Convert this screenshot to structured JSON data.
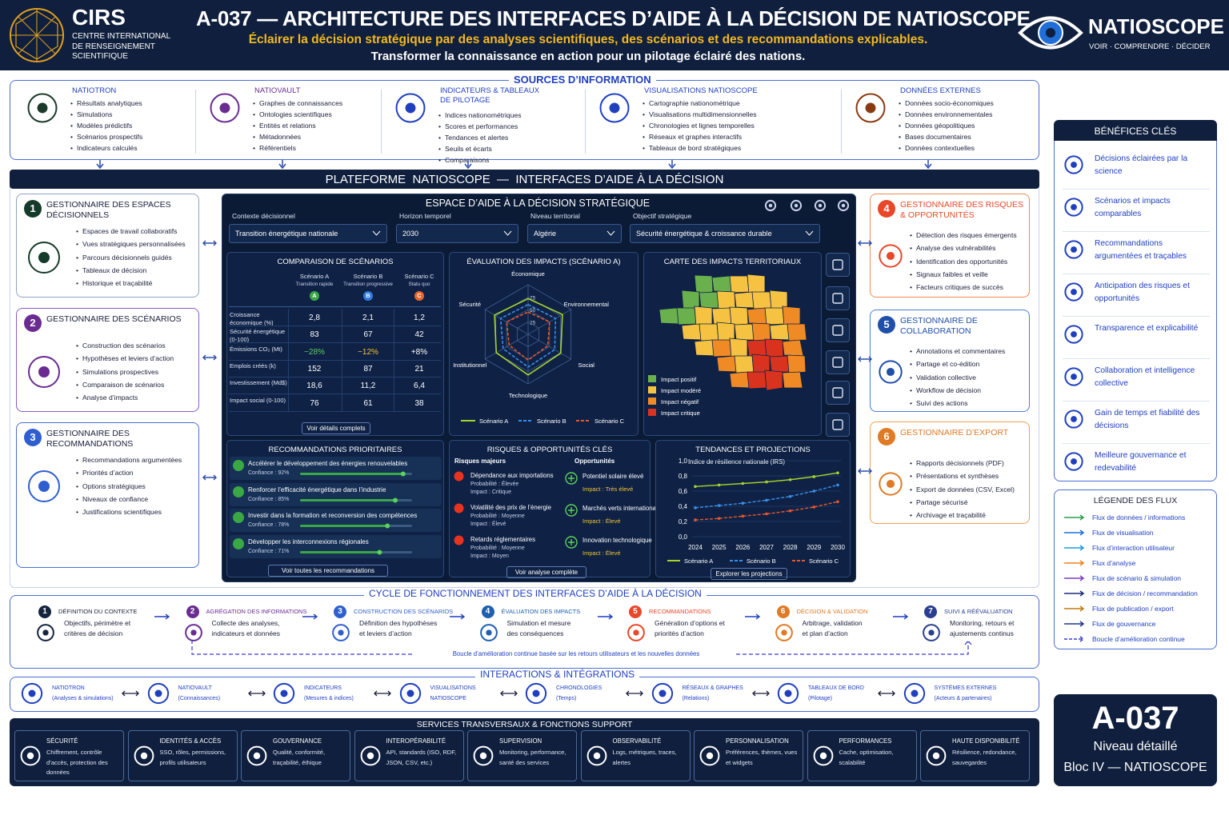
{
  "header": {
    "org_acronym": "CIRS",
    "org_name": [
      "CENTRE INTERNATIONAL",
      "DE RENSEIGNEMENT",
      "SCIENTIFIQUE"
    ],
    "title": "A-037 — ARCHITECTURE DES INTERFACES D’AIDE À LA DÉCISION DE NATIOSCOPE",
    "subtitle": "Éclairer la décision stratégique par des analyses scientifiques, des scénarios et des recommandations explicables.",
    "tagline": "Transformer la connaissance en action pour un pilotage éclairé des nations.",
    "brand": "NATIOSCOPE",
    "brand_tagline": "VOIR · COMPRENDRE · DÉCIDER"
  },
  "sources": {
    "title": "SOURCES D’INFORMATION",
    "items": [
      {
        "title": "NATIOTRON",
        "bullets": [
          "Résultats analytiques",
          "Simulations",
          "Modèles prédictifs",
          "Scénarios prospectifs",
          "Indicateurs calculés"
        ]
      },
      {
        "title": "NATIOVAULT",
        "bullets": [
          "Graphes de connaissances",
          "Ontologies scientifiques",
          "Entités et relations",
          "Métadonnées",
          "Référentiels"
        ]
      },
      {
        "title": "INDICATEURS & TABLEAUX DE PILOTAGE",
        "bullets": [
          "Indices nationométriques",
          "Scores et performances",
          "Tendances et alertes",
          "Seuils et écarts",
          "Comparaisons"
        ]
      },
      {
        "title": "VISUALISATIONS NATIOSCOPE",
        "bullets": [
          "Cartographie nationométrique",
          "Visualisations multidimensionnelles",
          "Chronologies et lignes temporelles",
          "Réseaux et graphes interactifs",
          "Tableaux de bord stratégiques"
        ]
      },
      {
        "title": "DONNÉES EXTERNES",
        "bullets": [
          "Données socio-économiques",
          "Données environnementales",
          "Données géopolitiques",
          "Bases documentaires",
          "Données contextuelles"
        ]
      }
    ]
  },
  "platform_title": "PLATEFORME  NATIOSCOPE  —  INTERFACES D’AIDE À LA DÉCISION",
  "managers": [
    {
      "num": 1,
      "color": "#163a2a",
      "border": "#8fa3c8",
      "title": "GESTIONNAIRE DES ESPACES DÉCISIONNELS",
      "bullets": [
        "Espaces de travail collaboratifs",
        "Vues stratégiques personnalisées",
        "Parcours décisionnels guidés",
        "Tableaux de décision",
        "Historique et traçabilité"
      ]
    },
    {
      "num": 2,
      "color": "#6a2c91",
      "border": "#8a5cc8",
      "title": "GESTIONNAIRE DES SCÉNARIOS",
      "bullets": [
        "Construction des scénarios",
        "Hypothèses et leviers d’action",
        "Simulations prospectives",
        "Comparaison de scénarios",
        "Analyse d’impacts"
      ]
    },
    {
      "num": 3,
      "color": "#2f5fcf",
      "border": "#4a6fd0",
      "title": "GESTIONNAIRE DES RECOMMANDATIONS",
      "bullets": [
        "Recommandations argumentées",
        "Priorités d’action",
        "Options stratégiques",
        "Niveaux de confiance",
        "Justifications scientifiques"
      ]
    },
    {
      "num": 4,
      "color": "#e8472a",
      "border": "#f08a50",
      "title": "GESTIONNAIRE DES RISQUES & OPPORTUNITÉS",
      "bullets": [
        "Détection des risques émergents",
        "Analyse des vulnérabilités",
        "Identification des opportunités",
        "Signaux faibles et veille",
        "Facteurs critiques de succès"
      ]
    },
    {
      "num": 5,
      "color": "#1f4fa8",
      "border": "#4a7fd8",
      "title": "GESTIONNAIRE DE COLLABORATION",
      "bullets": [
        "Annotations et commentaires",
        "Partage et co-édition",
        "Validation collective",
        "Workflow de décision",
        "Suivi des actions"
      ]
    },
    {
      "num": 6,
      "color": "#e07a24",
      "border": "#f0a050",
      "title": "GESTIONNAIRE D’EXPORT",
      "bullets": [
        "Rapports décisionnels (PDF)",
        "Présentations et synthèses",
        "Export de données (CSV, Excel)",
        "Partage sécurisé",
        "Archivage et traçabilité"
      ]
    }
  ],
  "dashboard": {
    "title": "ESPACE D’AIDE À LA DÉCISION STRATÉGIQUE",
    "filters": [
      {
        "label": "Contexte décisionnel",
        "value": "Transition énergétique nationale"
      },
      {
        "label": "Horizon temporel",
        "value": "2030"
      },
      {
        "label": "Niveau territorial",
        "value": "Algérie"
      },
      {
        "label": "Objectif stratégique",
        "value": "Sécurité énergétique & croissance durable"
      }
    ],
    "comparison": {
      "title": "COMPARAISON DE SCÉNARIOS",
      "scenarios": [
        {
          "name": "Scénario A",
          "sub": "Transition rapide",
          "letter": "A",
          "color": "#3aa845"
        },
        {
          "name": "Scénario B",
          "sub": "Transition progressive",
          "letter": "B",
          "color": "#2f7de1"
        },
        {
          "name": "Scénario C",
          "sub": "Statu quo",
          "letter": "C",
          "color": "#e8662a"
        }
      ],
      "rows": [
        {
          "label": "Croissance économique (%)",
          "values": [
            "2,8",
            "2,1",
            "1,2"
          ]
        },
        {
          "label": "Sécurité énergétique (0-100)",
          "values": [
            "83",
            "67",
            "42"
          ]
        },
        {
          "label": "Émissions CO₂ (Mt)",
          "values": [
            "−28%",
            "−12%",
            "+8%"
          ]
        },
        {
          "label": "Emplois créés (k)",
          "values": [
            "152",
            "87",
            "21"
          ]
        },
        {
          "label": "Investissement (Md$)",
          "values": [
            "18,6",
            "11,2",
            "6,4"
          ]
        },
        {
          "label": "Impact social (0-100)",
          "values": [
            "76",
            "61",
            "38"
          ]
        }
      ],
      "link": "Voir détails complets"
    },
    "radar": {
      "type": "radar",
      "title": "ÉVALUATION DES IMPACTS (SCÉNARIO A)",
      "axes": [
        "Économique",
        "Environnemental",
        "Social",
        "Technologique",
        "Institutionnel",
        "Sécurité"
      ],
      "rlim": [
        0,
        100
      ],
      "rticks": [
        25,
        50,
        75
      ],
      "series": [
        {
          "name": "Scénario A",
          "color": "#a6d32a",
          "values": [
            72,
            80,
            76,
            82,
            74,
            78
          ]
        },
        {
          "name": "Scénario B",
          "color": "#3a8ee8",
          "values": [
            60,
            64,
            62,
            66,
            58,
            64
          ]
        },
        {
          "name": "Scénario C",
          "color": "#e8552a",
          "values": [
            45,
            50,
            46,
            52,
            44,
            50
          ]
        }
      ]
    },
    "map": {
      "title": "CARTE DES IMPACTS TERRITORIAUX",
      "legend": [
        {
          "label": "Impact positif",
          "color": "#6ab04c"
        },
        {
          "label": "Impact modéré",
          "color": "#f5c242"
        },
        {
          "label": "Impact négatif",
          "color": "#f08a24"
        },
        {
          "label": "Impact critique",
          "color": "#d9331f"
        }
      ]
    },
    "recommendations": {
      "title": "RECOMMANDATIONS PRIORITAIRES",
      "items": [
        {
          "text": "Accélérer le développement des énergies renouvelables",
          "confidence": 92,
          "confidence_label": "Confiance : 92%"
        },
        {
          "text": "Renforcer l’efficacité énergétique dans l’industrie",
          "confidence": 85,
          "confidence_label": "Confiance : 85%"
        },
        {
          "text": "Investir dans la formation et reconversion des compétences",
          "confidence": 78,
          "confidence_label": "Confiance : 78%"
        },
        {
          "text": "Développer les interconnexions régionales",
          "confidence": 71,
          "confidence_label": "Confiance : 71%"
        }
      ],
      "link": "Voir toutes les recommandations"
    },
    "risks": {
      "title": "RISQUES & OPPORTUNITÉS CLÉS",
      "risks_title": "Risques majeurs",
      "opportunities_title": "Opportunités",
      "risks": [
        {
          "title": "Dépendance aux importations",
          "lines": [
            "Probabilité : Élevée",
            "Impact : Critique"
          ]
        },
        {
          "title": "Volatilité des prix de l’énergie",
          "lines": [
            "Probabilité : Moyenne",
            "Impact : Élevé"
          ]
        },
        {
          "title": "Retards réglementaires",
          "lines": [
            "Probabilité : Moyenne",
            "Impact : Moyen"
          ]
        }
      ],
      "opportunities": [
        {
          "title": "Potentiel solaire élevé",
          "lines": [
            "Impact : Très élevé"
          ]
        },
        {
          "title": "Marchés verts internationaux",
          "lines": [
            "Impact : Élevé"
          ]
        },
        {
          "title": "Innovation technologique",
          "lines": [
            "Impact : Élevé"
          ]
        }
      ],
      "link": "Voir analyse complète"
    },
    "trends": {
      "type": "line",
      "title": "TENDANCES ET PROJECTIONS",
      "subtitle": "Indice de résilience nationale (IRS)",
      "categories": [
        "2024",
        "2025",
        "2026",
        "2027",
        "2028",
        "2029",
        "2030"
      ],
      "ylim": [
        0,
        1
      ],
      "yticks": [
        {
          "value": 0,
          "label": "0,0"
        },
        {
          "value": 0.2,
          "label": "0,2"
        },
        {
          "value": 0.4,
          "label": "0,4"
        },
        {
          "value": 0.6,
          "label": "0,6"
        },
        {
          "value": 0.8,
          "label": "0,8"
        },
        {
          "value": 1,
          "label": "1,0"
        }
      ],
      "series": [
        {
          "name": "Scénario A",
          "color": "#a6d32a",
          "values": [
            0.66,
            0.68,
            0.7,
            0.72,
            0.75,
            0.79,
            0.84
          ]
        },
        {
          "name": "Scénario B",
          "color": "#3a8ee8",
          "values": [
            0.38,
            0.41,
            0.44,
            0.48,
            0.53,
            0.6,
            0.68
          ]
        },
        {
          "name": "Scénario C",
          "color": "#e8552a",
          "values": [
            0.22,
            0.24,
            0.27,
            0.3,
            0.34,
            0.39,
            0.46
          ]
        }
      ],
      "link": "Explorer les projections"
    }
  },
  "cycle": {
    "title": "CYCLE DE FONCTIONNEMENT DES INTERFACES D’AIDE À LA DÉCISION",
    "steps": [
      {
        "num": 1,
        "color": "#14243f",
        "title": "DÉFINITION DU CONTEXTE",
        "desc": [
          "Objectifs, périmètre et",
          "critères de décision"
        ]
      },
      {
        "num": 2,
        "color": "#6a2c91",
        "title": "AGRÉGATION DES INFORMATIONS",
        "desc": [
          "Collecte des analyses,",
          "indicateurs et données"
        ]
      },
      {
        "num": 3,
        "color": "#2f5fcf",
        "title": "CONSTRUCTION DES SCÉNARIOS",
        "desc": [
          "Définition des hypothèses",
          "et leviers d’action"
        ]
      },
      {
        "num": 4,
        "color": "#1f5fb0",
        "title": "ÉVALUATION DES IMPACTS",
        "desc": [
          "Simulation et mesure",
          "des conséquences"
        ]
      },
      {
        "num": 5,
        "color": "#e8472a",
        "title": "RECOMMANDATIONS",
        "desc": [
          "Génération d’options et",
          "priorités d’action"
        ]
      },
      {
        "num": 6,
        "color": "#e07a24",
        "title": "DÉCISION & VALIDATION",
        "desc": [
          "Arbitrage, validation",
          "et plan d’action"
        ]
      },
      {
        "num": 7,
        "color": "#2a3f8f",
        "title": "SUIVI & RÉÉVALUATION",
        "desc": [
          "Monitoring, retours et",
          "ajustements continus"
        ]
      }
    ],
    "loop": "Boucle d’amélioration continue basée sur les retours utilisateurs et les nouvelles données"
  },
  "interactions": {
    "title": "INTERACTIONS & INTÉGRATIONS",
    "items": [
      {
        "title": "NATIOTRON",
        "sub": "(Analyses & simulations)"
      },
      {
        "title": "NATIOVAULT",
        "sub": "(Connaissances)"
      },
      {
        "title": "INDICATEURS",
        "sub": "(Mesures & indices)"
      },
      {
        "title": "VISUALISATIONS",
        "sub": "NATIOSCOPE"
      },
      {
        "title": "CHRONOLOGIES",
        "sub": "(Temps)"
      },
      {
        "title": "RÉSEAUX & GRAPHES",
        "sub": "(Relations)"
      },
      {
        "title": "TABLEAUX DE BORD",
        "sub": "(Pilotage)"
      },
      {
        "title": "SYSTÈMES EXTERNES",
        "sub": "(Acteurs & partenaires)"
      }
    ]
  },
  "services": {
    "title": "SERVICES TRANSVERSAUX & FONCTIONS SUPPORT",
    "items": [
      {
        "title": "SÉCURITÉ",
        "desc": "Chiffrement, contrôle d’accès, protection des données"
      },
      {
        "title": "IDENTITÉS & ACCÈS",
        "desc": "SSO, rôles, permissions, profils utilisateurs"
      },
      {
        "title": "GOUVERNANCE",
        "desc": "Qualité, conformité, traçabilité, éthique"
      },
      {
        "title": "INTEROPÉRABILITÉ",
        "desc": "API, standards (ISO, RDF, JSON, CSV, etc.)"
      },
      {
        "title": "SUPERVISION",
        "desc": "Monitoring, performance, santé des services"
      },
      {
        "title": "OBSERVABILITÉ",
        "desc": "Logs, métriques, traces, alertes"
      },
      {
        "title": "PERSONNALISATION",
        "desc": "Préférences, thèmes, vues et widgets"
      },
      {
        "title": "PERFORMANCES",
        "desc": "Cache, optimisation, scalabilité"
      },
      {
        "title": "HAUTE DISPONIBILITÉ",
        "desc": "Résilience, redondance, sauvegardes"
      }
    ]
  },
  "benefits": {
    "title": "BÉNÉFICES CLÉS",
    "items": [
      "Décisions éclairées par la science",
      "Scénarios et impacts comparables",
      "Recommandations argumentées et traçables",
      "Anticipation des risques et opportunités",
      "Transparence et explicabilité",
      "Collaboration et intelligence collective",
      "Gain de temps et fiabilité des décisions",
      "Meilleure gouvernance et redevabilité"
    ]
  },
  "flows": {
    "title": "LÉGENDE DES FLUX",
    "items": [
      {
        "label": "Flux de données / informations",
        "color": "#2e9e4f"
      },
      {
        "label": "Flux de visualisation",
        "color": "#1f6fd6"
      },
      {
        "label": "Flux d’interaction utilisateur",
        "color": "#1d9be0"
      },
      {
        "label": "Flux d’analyse",
        "color": "#f08020"
      },
      {
        "label": "Flux de scénario & simulation",
        "color": "#7b3fc4"
      },
      {
        "label": "Flux de décision / recommandation",
        "color": "#1b2a7a"
      },
      {
        "label": "Flux de publication / export",
        "color": "#c07a10"
      },
      {
        "label": "Flux de gouvernance",
        "color": "#25338a"
      },
      {
        "label": "Boucle d’amélioration continue",
        "color": "#3a3ad0",
        "dashed": true
      }
    ]
  },
  "badge": {
    "code": "A-037",
    "level": "Niveau détaillé",
    "block": "Bloc IV — NATIOSCOPE"
  }
}
